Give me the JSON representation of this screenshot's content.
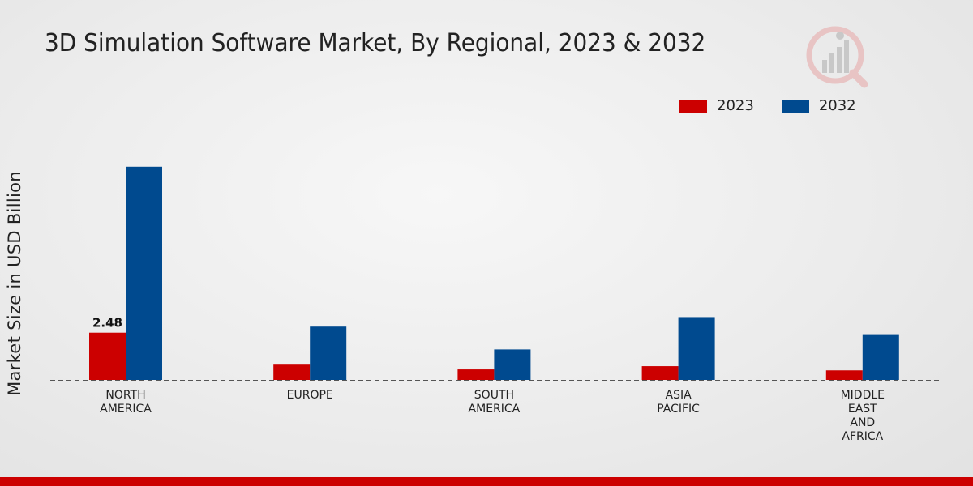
{
  "chart_data": {
    "type": "bar",
    "title": "3D Simulation Software Market, By Regional, 2023 & 2032",
    "xlabel": "",
    "ylabel": "Market Size in USD Billion",
    "categories": [
      [
        "NORTH",
        "AMERICA"
      ],
      [
        "EUROPE"
      ],
      [
        "SOUTH",
        "AMERICA"
      ],
      [
        "ASIA",
        "PACIFIC"
      ],
      [
        "MIDDLE",
        "EAST",
        "AND",
        "AFRICA"
      ]
    ],
    "series": [
      {
        "name": "2023",
        "color": "#cc0000",
        "values": [
          2.48,
          0.8,
          0.55,
          0.72,
          0.5
        ]
      },
      {
        "name": "2032",
        "color": "#004a8f",
        "values": [
          11.2,
          2.8,
          1.6,
          3.3,
          2.4
        ]
      }
    ],
    "data_labels": [
      {
        "series": 0,
        "index": 0,
        "text": "2.48"
      }
    ],
    "ylim": [
      0,
      14
    ],
    "legend_position": "top-right",
    "grid": false
  },
  "legend": {
    "item_2023": "2023",
    "item_2032": "2032",
    "color_2023": "#cc0000",
    "color_2032": "#004a8f"
  },
  "logo_icon": "market-research-logo-icon",
  "accent_bar_color": "#cc0000"
}
